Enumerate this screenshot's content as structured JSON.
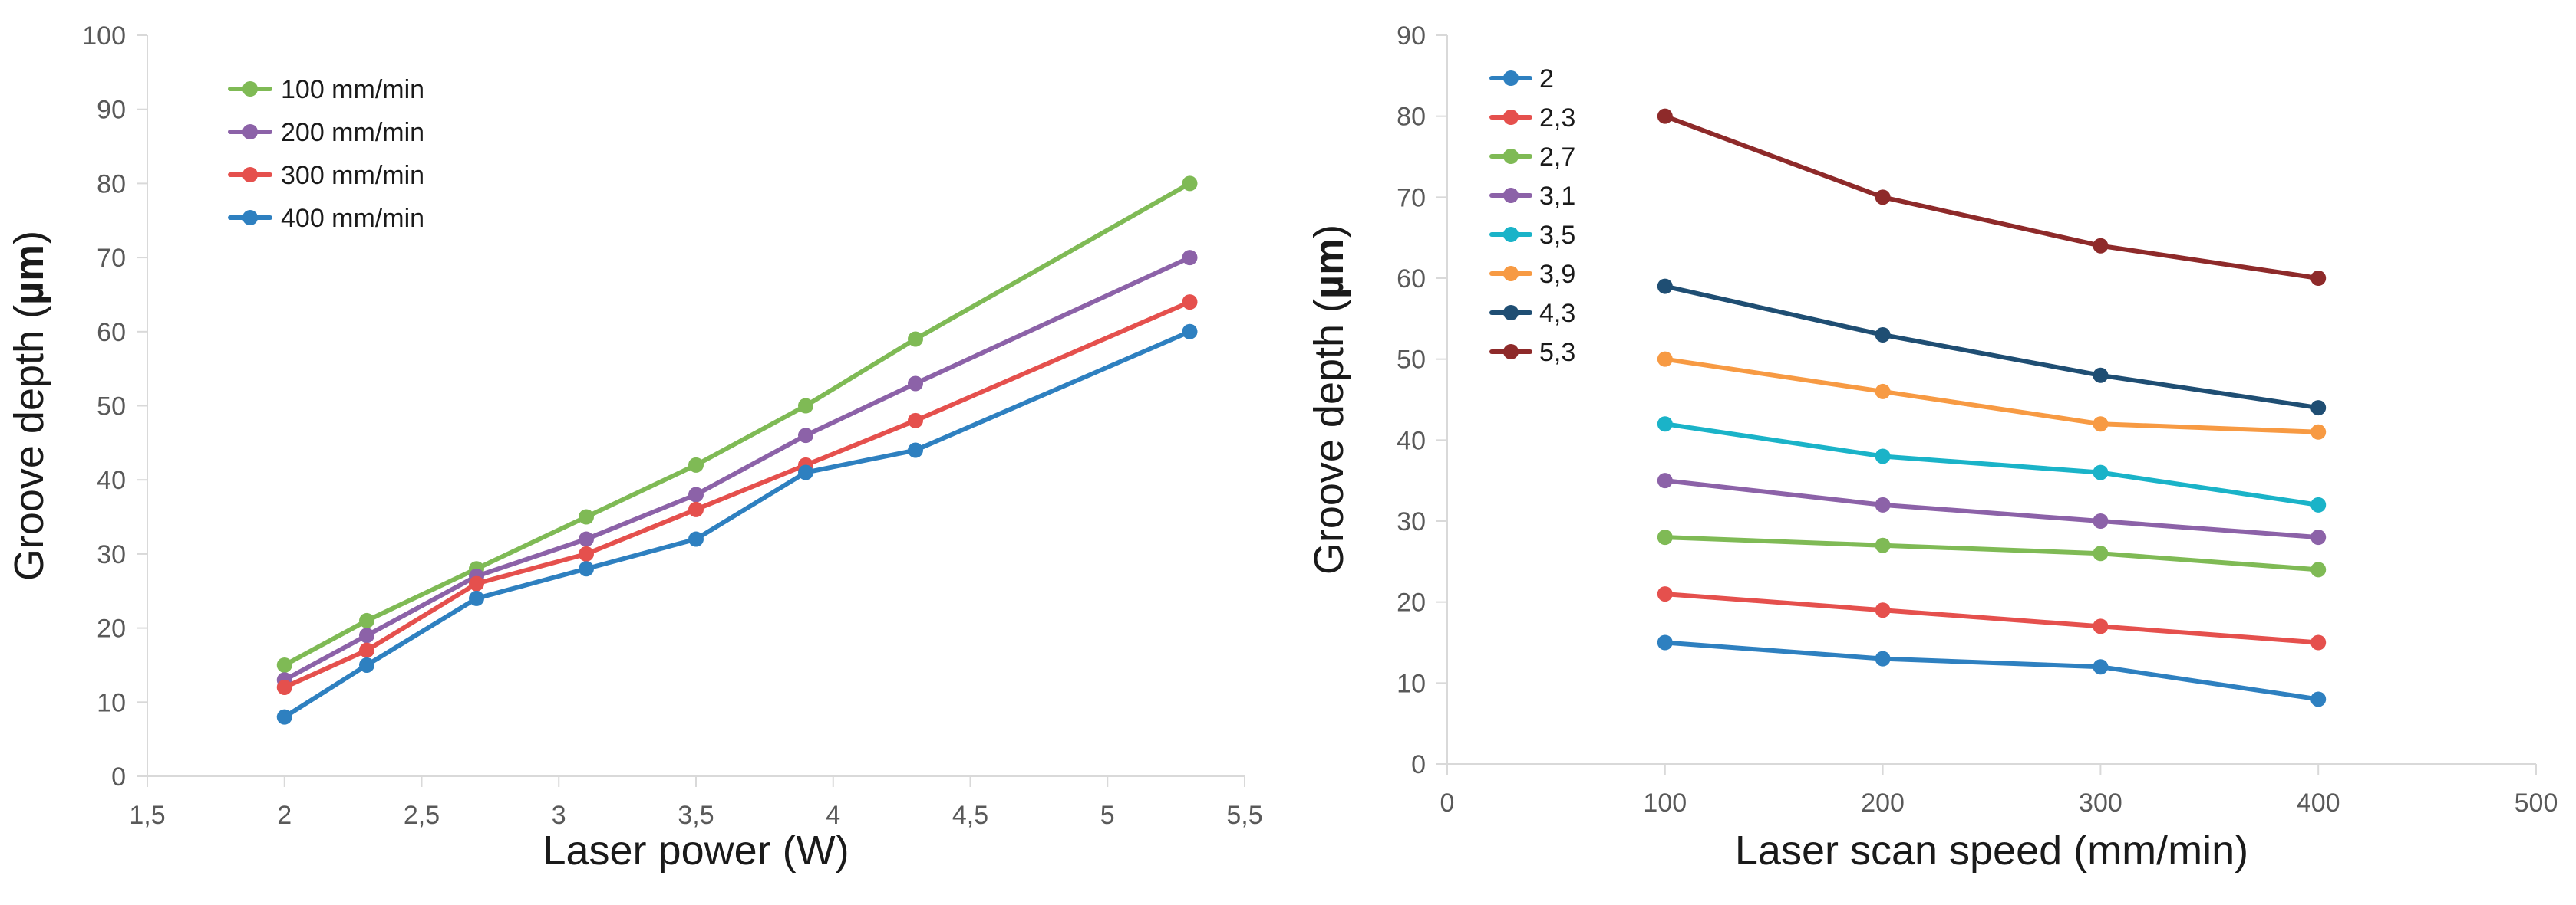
{
  "chart_data": [
    {
      "type": "line",
      "title": "",
      "xlabel": "Laser power (W)",
      "ylabel_prefix": "Groove depth (",
      "ylabel_unit": "µm",
      "ylabel_suffix": ")",
      "xlim": [
        1.5,
        5.5
      ],
      "ylim": [
        0,
        100
      ],
      "x_ticks": [
        1.5,
        2,
        2.5,
        3,
        3.5,
        4,
        4.5,
        5,
        5.5
      ],
      "x_tick_labels": [
        "1,5",
        "2",
        "2,5",
        "3",
        "3,5",
        "4",
        "4,5",
        "5",
        "5,5"
      ],
      "y_ticks": [
        0,
        10,
        20,
        30,
        40,
        50,
        60,
        70,
        80,
        90,
        100
      ],
      "y_tick_labels": [
        "0",
        "10",
        "20",
        "30",
        "40",
        "50",
        "60",
        "70",
        "80",
        "90",
        "100"
      ],
      "grid": false,
      "legend_position": "top-left",
      "x": [
        2,
        2.3,
        2.7,
        3.1,
        3.5,
        3.9,
        4.3,
        5.3
      ],
      "series": [
        {
          "name": "100 mm/min",
          "color": "#7fba55",
          "values": [
            15,
            21,
            28,
            35,
            42,
            50,
            59,
            80
          ]
        },
        {
          "name": "200 mm/min",
          "color": "#8c62a8",
          "values": [
            13,
            19,
            27,
            32,
            38,
            46,
            53,
            70
          ]
        },
        {
          "name": "300 mm/min",
          "color": "#e5504d",
          "values": [
            12,
            17,
            26,
            30,
            36,
            42,
            48,
            64
          ]
        },
        {
          "name": "400 mm/min",
          "color": "#2e80c0",
          "values": [
            8,
            15,
            24,
            28,
            32,
            41,
            44,
            60
          ]
        }
      ]
    },
    {
      "type": "line",
      "title": "",
      "xlabel": "Laser scan speed (mm/min)",
      "ylabel_prefix": "Groove depth (",
      "ylabel_unit": "µm",
      "ylabel_suffix": ")",
      "xlim": [
        0,
        500
      ],
      "ylim": [
        0,
        90
      ],
      "x_ticks": [
        0,
        100,
        200,
        300,
        400,
        500
      ],
      "x_tick_labels": [
        "0",
        "100",
        "200",
        "300",
        "400",
        "500"
      ],
      "y_ticks": [
        0,
        10,
        20,
        30,
        40,
        50,
        60,
        70,
        80,
        90
      ],
      "y_tick_labels": [
        "0",
        "10",
        "20",
        "30",
        "40",
        "50",
        "60",
        "70",
        "80",
        "90"
      ],
      "grid": false,
      "legend_position": "top-left",
      "x": [
        100,
        200,
        300,
        400
      ],
      "series": [
        {
          "name": "2",
          "color": "#2e80c0",
          "values": [
            15,
            13,
            12,
            8
          ]
        },
        {
          "name": "2,3",
          "color": "#e5504d",
          "values": [
            21,
            19,
            17,
            15
          ]
        },
        {
          "name": "2,7",
          "color": "#7fba55",
          "values": [
            28,
            27,
            26,
            24
          ]
        },
        {
          "name": "3,1",
          "color": "#8c62a8",
          "values": [
            35,
            32,
            30,
            28
          ]
        },
        {
          "name": "3,5",
          "color": "#1ab3c8",
          "values": [
            42,
            38,
            36,
            32
          ]
        },
        {
          "name": "3,9",
          "color": "#f79a43",
          "values": [
            50,
            46,
            42,
            41
          ]
        },
        {
          "name": "4,3",
          "color": "#1f4e73",
          "values": [
            59,
            53,
            48,
            44
          ]
        },
        {
          "name": "5,3",
          "color": "#8e2a2a",
          "values": [
            80,
            70,
            64,
            60
          ]
        }
      ]
    }
  ]
}
